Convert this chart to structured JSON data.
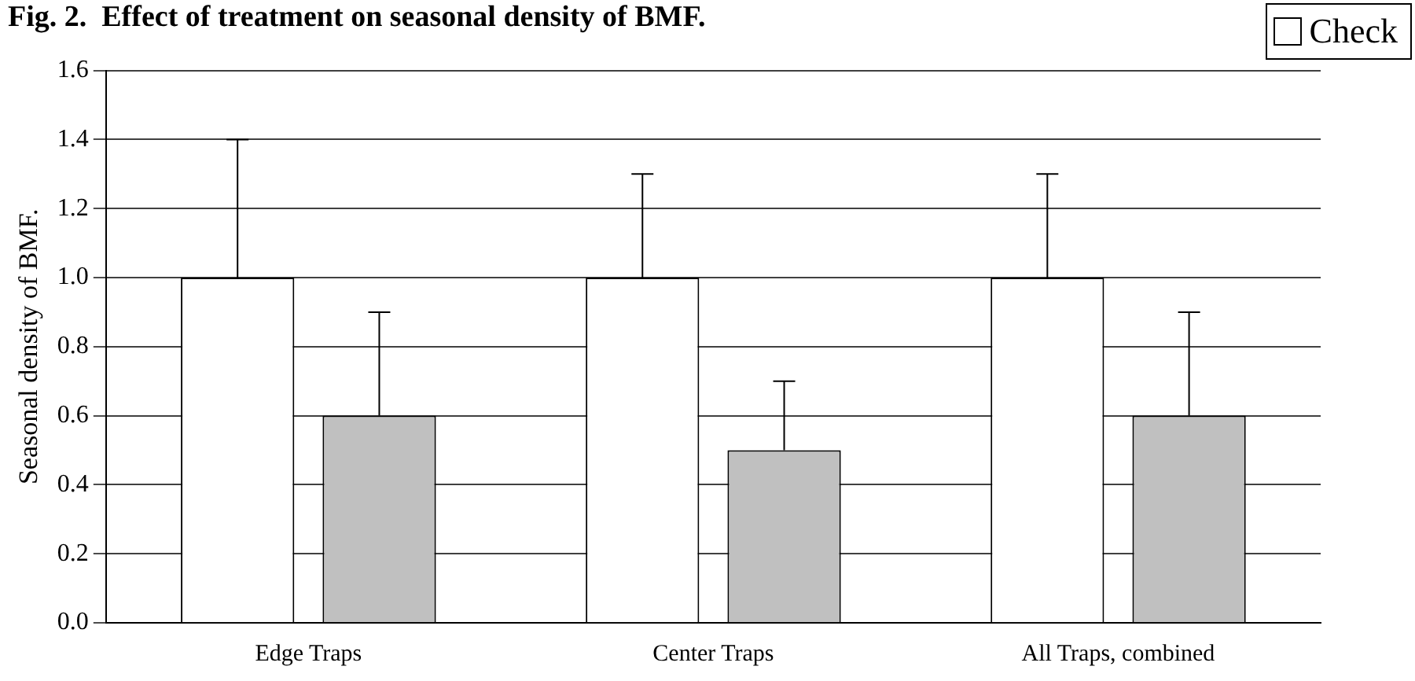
{
  "chart_data": {
    "type": "bar",
    "title": "Fig. 2.  Effect of treatment on seasonal density of BMF.",
    "ylabel": "Seasonal density of BMF.",
    "categories": [
      "Edge Traps",
      "Center Traps",
      "All Traps, combined"
    ],
    "series": [
      {
        "name": "Check",
        "color": "#ffffff",
        "values": [
          1.0,
          1.0,
          1.0
        ],
        "errors": [
          [
            1.0,
            1.4
          ],
          [
            1.0,
            1.3
          ],
          [
            1.0,
            1.3
          ]
        ]
      },
      {
        "color": "#c0c0c0",
        "values": [
          0.6,
          0.5,
          0.6
        ],
        "errors": [
          [
            0.6,
            0.9
          ],
          [
            0.5,
            0.7
          ],
          [
            0.6,
            0.9
          ]
        ]
      }
    ],
    "ylim": [
      0,
      1.6
    ],
    "yticks": [
      {
        "value": 0,
        "label": "0.0"
      },
      0.2,
      0.4,
      0.6,
      0.8,
      {
        "value": 1,
        "label": "1.0"
      },
      1.2,
      1.4,
      1.6
    ],
    "grid": "y",
    "legend": "top right"
  }
}
